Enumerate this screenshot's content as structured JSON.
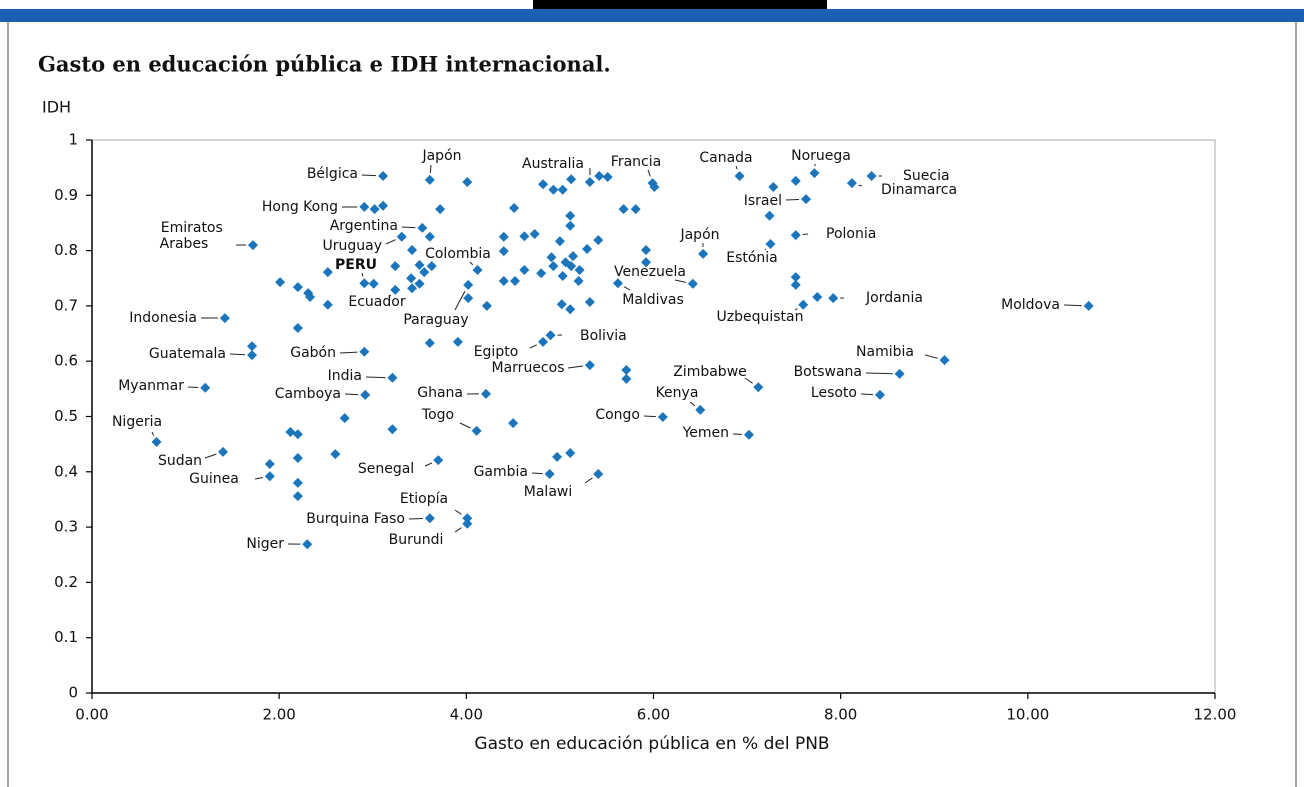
{
  "chart_data": {
    "type": "scatter",
    "title": "Gasto en educación pública e IDH internacional.",
    "ylabel": "IDH",
    "xlabel": "Gasto en educación pública en % del PNB",
    "color": "#1b75bc",
    "xlim": [
      0,
      12
    ],
    "ylim": [
      0,
      1
    ],
    "xticks": [
      {
        "value": 0,
        "label": "0.00"
      },
      {
        "value": 2,
        "label": "2.00"
      },
      {
        "value": 4,
        "label": "4.00"
      },
      {
        "value": 6,
        "label": "6.00"
      },
      {
        "value": 8,
        "label": "8.00"
      },
      {
        "value": 10,
        "label": "10.00"
      },
      {
        "value": 12,
        "label": "12.00"
      }
    ],
    "yticks": [
      0,
      0.1,
      0.2,
      0.3,
      0.4,
      0.5,
      0.6,
      0.7,
      0.8,
      0.9,
      1
    ],
    "x": [
      3.11,
      3.61,
      5.32,
      5.99,
      6.92,
      7.72,
      8.33,
      8.12,
      7.63,
      2.91,
      3.53,
      3.31,
      1.72,
      4.12,
      2.91,
      3.24,
      4.02,
      7.52,
      6.53,
      7.25,
      6.42,
      5.62,
      7.92,
      7.6,
      10.65,
      1.42,
      4.9,
      4.82,
      1.71,
      2.91,
      9.11,
      5.32,
      7.12,
      8.63,
      3.21,
      1.21,
      2.92,
      4.21,
      8.42,
      6.5,
      6.1,
      4.11,
      7.02,
      0.69,
      1.4,
      3.7,
      4.89,
      1.9,
      5.41,
      3.61,
      4.01,
      4.01,
      2.3,
      4.01,
      3.72,
      4.51,
      4.82,
      4.93,
      5.03,
      5.12,
      5.42,
      5.51,
      5.68,
      5.81,
      5.11,
      5.11,
      5.41,
      5.29,
      5.0,
      4.62,
      4.73,
      4.4,
      4.4,
      3.61,
      3.42,
      3.5,
      3.63,
      3.55,
      3.41,
      3.5,
      3.42,
      3.24,
      4.91,
      5.06,
      5.14,
      4.93,
      5.12,
      5.21,
      5.03,
      5.2,
      4.62,
      4.52,
      4.4,
      4.8,
      5.92,
      5.92,
      7.52,
      7.52,
      7.75,
      5.02,
      5.11,
      5.32,
      3.61,
      3.91,
      4.22,
      2.2,
      5.71,
      5.71,
      4.5,
      4.97,
      5.11,
      1.9,
      2.2,
      2.2,
      2.2,
      2.12,
      2.2,
      2.6,
      2.7,
      3.21,
      2.01,
      2.2,
      2.31,
      2.33,
      2.52,
      2.52,
      7.28,
      7.52,
      7.24,
      3.02,
      3.11,
      6.01,
      1.71,
      3.01,
      4.02
    ],
    "values": [
      0.935,
      0.928,
      0.924,
      0.922,
      0.935,
      0.94,
      0.935,
      0.922,
      0.893,
      0.879,
      0.841,
      0.825,
      0.81,
      0.765,
      0.741,
      0.729,
      0.738,
      0.828,
      0.794,
      0.812,
      0.74,
      0.741,
      0.714,
      0.702,
      0.7,
      0.678,
      0.647,
      0.635,
      0.611,
      0.617,
      0.602,
      0.593,
      0.553,
      0.577,
      0.57,
      0.552,
      0.539,
      0.541,
      0.539,
      0.512,
      0.499,
      0.474,
      0.467,
      0.454,
      0.436,
      0.421,
      0.396,
      0.392,
      0.396,
      0.316,
      0.316,
      0.306,
      0.269,
      0.924,
      0.875,
      0.877,
      0.92,
      0.91,
      0.91,
      0.929,
      0.935,
      0.933,
      0.875,
      0.875,
      0.863,
      0.845,
      0.819,
      0.803,
      0.817,
      0.826,
      0.83,
      0.825,
      0.799,
      0.825,
      0.801,
      0.774,
      0.772,
      0.761,
      0.75,
      0.74,
      0.732,
      0.772,
      0.788,
      0.779,
      0.79,
      0.772,
      0.772,
      0.765,
      0.754,
      0.745,
      0.765,
      0.745,
      0.745,
      0.759,
      0.801,
      0.779,
      0.752,
      0.738,
      0.716,
      0.703,
      0.694,
      0.707,
      0.633,
      0.635,
      0.7,
      0.66,
      0.584,
      0.568,
      0.488,
      0.427,
      0.434,
      0.414,
      0.425,
      0.38,
      0.356,
      0.472,
      0.468,
      0.432,
      0.497,
      0.477,
      0.743,
      0.734,
      0.723,
      0.716,
      0.761,
      0.702,
      0.915,
      0.926,
      0.863,
      0.875,
      0.881,
      0.915,
      0.627,
      0.74,
      0.714
    ],
    "labels": [
      "Bélgica",
      "Japón",
      "Australia",
      "Francia",
      "Canada",
      "Noruega",
      "Suecia",
      "Dinamarca",
      "Israel",
      "Hong Kong",
      "Argentina",
      "Uruguay",
      "Emiratos Arabes",
      "Colombia",
      "PERU",
      "Ecuador",
      "Paraguay",
      "Polonia",
      "Japón",
      "Estónia",
      "Venezuela",
      "Maldivas",
      "Jordania",
      "Uzbequistan",
      "Moldova",
      "Indonesia",
      "Bolivia",
      "Egipto",
      "Guatemala",
      "Gabón",
      "Namibia",
      "Marruecos",
      "Zimbabwe",
      "Botswana",
      "India",
      "Myanmar",
      "Camboya",
      "Ghana",
      "Lesoto",
      "Kenya",
      "Congo",
      "Togo",
      "Yemen",
      "Nigeria",
      "Sudan",
      "Senegal",
      "Gambia",
      "Guinea",
      "Malawi",
      "Burquina Faso",
      "Etiopía",
      "Burundi",
      "Niger",
      null,
      null,
      null,
      null,
      null,
      null,
      null,
      null,
      null,
      null,
      null,
      null,
      null,
      null,
      null,
      null,
      null,
      null,
      null,
      null,
      null,
      null,
      null,
      null,
      null,
      null,
      null,
      null,
      null,
      null,
      null,
      null,
      null,
      null,
      null,
      null,
      null,
      null,
      null,
      null,
      null,
      null,
      null,
      null,
      null,
      null,
      null,
      null,
      null,
      null,
      null,
      null,
      null,
      null,
      null,
      null,
      null,
      null,
      null,
      null,
      null,
      null,
      null,
      null,
      null,
      null,
      null,
      null,
      null,
      null,
      null,
      null,
      null,
      null,
      null,
      null,
      null,
      null,
      null,
      null,
      null,
      null
    ]
  }
}
